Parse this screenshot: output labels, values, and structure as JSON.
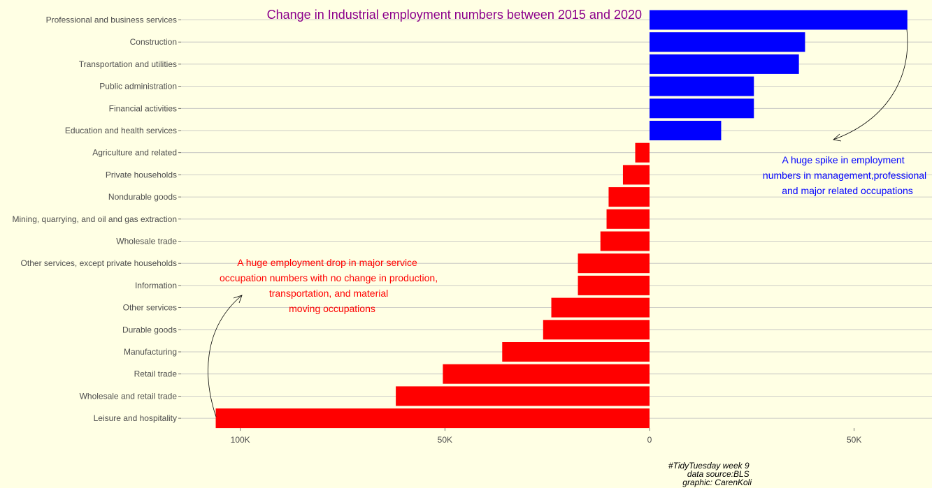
{
  "chart_data": {
    "type": "bar",
    "orientation": "horizontal",
    "title": "Change in Industrial employment numbers between 2015 and 2020",
    "xlabel": "",
    "ylabel": "",
    "xlim": [
      -114000,
      69000
    ],
    "xticks": [
      {
        "value": -100000,
        "label": "100K"
      },
      {
        "value": -50000,
        "label": "50K"
      },
      {
        "value": 0,
        "label": "0"
      },
      {
        "value": 50000,
        "label": "50K"
      }
    ],
    "grid": "horizontal",
    "legend": "none",
    "colors": {
      "positive": "#0000ff",
      "negative": "#ff0000",
      "title": "#8b008b",
      "background": "#ffffe4",
      "grid": "#bdbdbd"
    },
    "categories": [
      "Professional and business services",
      "Construction",
      "Transportation and utilities",
      "Public administration",
      "Financial activities",
      "Education and health services",
      "Agriculture and related",
      "Private households",
      "Nondurable goods",
      "Mining, quarrying, and oil and gas extraction",
      "Wholesale trade",
      "Other services, except private households",
      "Information",
      "Other services",
      "Durable goods",
      "Manufacturing",
      "Retail trade",
      "Wholesale and retail trade",
      "Leisure and hospitality"
    ],
    "values": [
      63000,
      38000,
      36500,
      25500,
      25500,
      17500,
      -3500,
      -6500,
      -10000,
      -10500,
      -12000,
      -17500,
      -17500,
      -24000,
      -26000,
      -36000,
      -50500,
      -62000,
      -106000
    ],
    "annotations": [
      {
        "lines": [
          "A huge spike in employment",
          "numbers in management,professional",
          "and  major related occupations"
        ],
        "color": "#0000ff"
      },
      {
        "lines": [
          "A huge employment drop in major service",
          "occupation numbers with no change in production,",
          "transportation, and material",
          "moving occupations"
        ],
        "color": "#ff0000"
      }
    ],
    "caption": [
      "#TidyTuesday week 9",
      "data source:BLS",
      "graphic: CarenKoli"
    ]
  }
}
